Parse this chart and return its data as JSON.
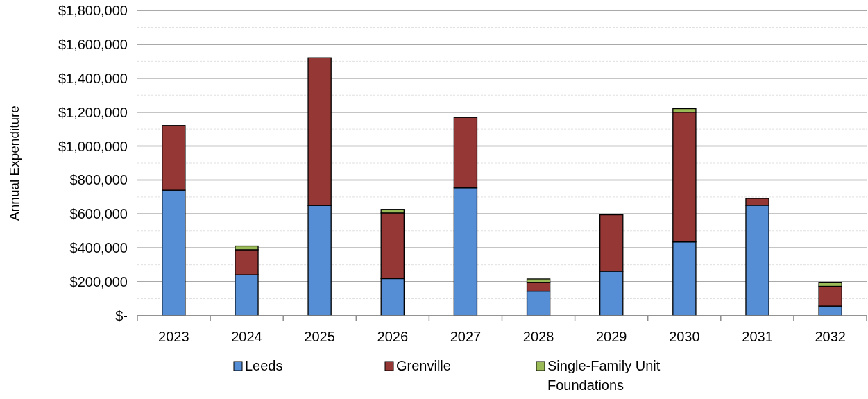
{
  "chart_data": {
    "type": "bar",
    "stacked": true,
    "ylabel": "Annual Expenditure",
    "categories": [
      "2023",
      "2024",
      "2025",
      "2026",
      "2027",
      "2028",
      "2029",
      "2030",
      "2031",
      "2032"
    ],
    "series": [
      {
        "name": "Leeds",
        "color": "#558ed5",
        "values": [
          740000,
          241000,
          650000,
          219000,
          754000,
          145000,
          262000,
          435000,
          651000,
          57000
        ]
      },
      {
        "name": "Grenville",
        "color": "#953735",
        "values": [
          382000,
          148000,
          871000,
          387000,
          415000,
          51000,
          333000,
          765000,
          40000,
          117000
        ]
      },
      {
        "name": "Single-Family Unit Foundations",
        "color": "#9bbb59",
        "values": [
          0,
          22000,
          0,
          21000,
          0,
          21000,
          0,
          21000,
          0,
          21000
        ]
      }
    ],
    "ylim": [
      0,
      1800000
    ],
    "yticks": [
      {
        "value": 0,
        "label": "$-"
      },
      {
        "value": 100000,
        "label": null
      },
      {
        "value": 200000,
        "label": "$200,000"
      },
      {
        "value": 300000,
        "label": null
      },
      {
        "value": 400000,
        "label": "$400,000"
      },
      {
        "value": 500000,
        "label": null
      },
      {
        "value": 600000,
        "label": "$600,000"
      },
      {
        "value": 700000,
        "label": null
      },
      {
        "value": 800000,
        "label": "$800,000"
      },
      {
        "value": 900000,
        "label": null
      },
      {
        "value": 1000000,
        "label": "$1,000,000"
      },
      {
        "value": 1100000,
        "label": null
      },
      {
        "value": 1200000,
        "label": "$1,200,000"
      },
      {
        "value": 1300000,
        "label": null
      },
      {
        "value": 1400000,
        "label": "$1,400,000"
      },
      {
        "value": 1500000,
        "label": null
      },
      {
        "value": 1600000,
        "label": "$1,600,000"
      },
      {
        "value": 1700000,
        "label": null
      },
      {
        "value": 1800000,
        "label": "$1,800,000"
      }
    ],
    "grid": "y",
    "legend": "bottom"
  }
}
